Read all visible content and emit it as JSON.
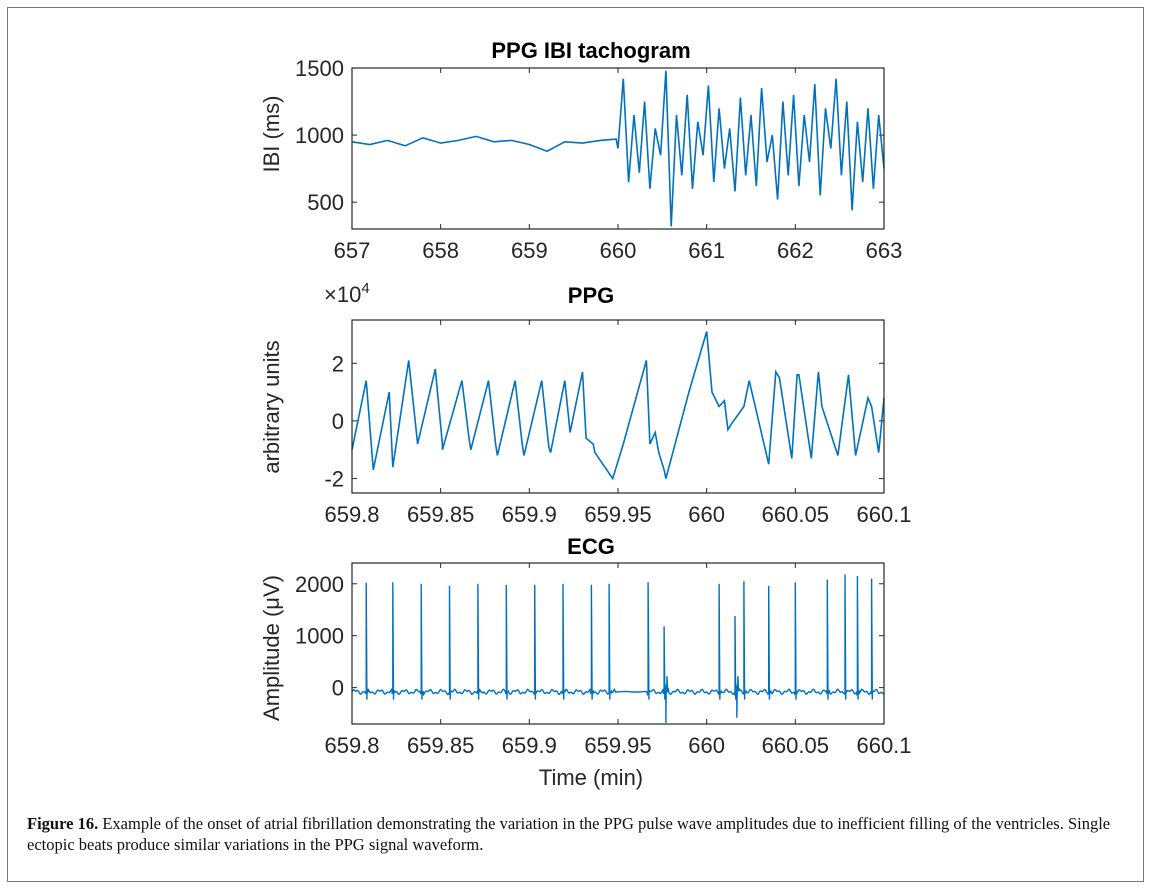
{
  "figure": {
    "caption_label": "Figure 16.",
    "caption_text": " Example of the onset of atrial fibrillation demonstrating the variation in the PPG pulse wave amplitudes due to inefficient filling of the ventricles. Single ectopic beats produce similar variations in the PPG signal waveform."
  },
  "colors": {
    "line": "#0072BD",
    "axis": "#262626"
  },
  "chart_data": [
    {
      "type": "line",
      "title": "PPG IBI tachogram",
      "xlabel": "",
      "ylabel": "IBI (ms)",
      "xlim": [
        657,
        663
      ],
      "ylim": [
        300,
        1500
      ],
      "xticks": [
        657,
        658,
        659,
        660,
        661,
        662,
        663
      ],
      "xtick_labels": [
        "657",
        "658",
        "659",
        "660",
        "661",
        "662",
        "663"
      ],
      "yticks": [
        500,
        1000,
        1500
      ],
      "ytick_labels": [
        "500",
        "1000",
        "1500"
      ],
      "series": [
        {
          "x": [
            657.0,
            657.2,
            657.4,
            657.6,
            657.8,
            658.0,
            658.2,
            658.4,
            658.6,
            658.8,
            659.0,
            659.2,
            659.4,
            659.6,
            659.8,
            659.98,
            660.0,
            660.06,
            660.12,
            660.18,
            660.24,
            660.3,
            660.36,
            660.42,
            660.48,
            660.54,
            660.6,
            660.66,
            660.72,
            660.78,
            660.84,
            660.9,
            660.96,
            661.02,
            661.08,
            661.14,
            661.2,
            661.26,
            661.32,
            661.38,
            661.44,
            661.5,
            661.56,
            661.62,
            661.68,
            661.74,
            661.8,
            661.86,
            661.92,
            661.98,
            662.04,
            662.1,
            662.16,
            662.22,
            662.28,
            662.34,
            662.4,
            662.46,
            662.52,
            662.58,
            662.64,
            662.7,
            662.76,
            662.82,
            662.88,
            662.94,
            663.0
          ],
          "y": [
            950,
            930,
            960,
            920,
            980,
            940,
            960,
            990,
            950,
            960,
            930,
            880,
            950,
            940,
            960,
            970,
            900,
            1420,
            650,
            1150,
            720,
            1250,
            600,
            1050,
            850,
            1480,
            320,
            1150,
            700,
            1300,
            600,
            1100,
            850,
            1370,
            650,
            1200,
            750,
            1050,
            580,
            1280,
            700,
            1150,
            620,
            1350,
            800,
            1000,
            520,
            1250,
            700,
            1300,
            620,
            1150,
            800,
            1380,
            550,
            1200,
            900,
            1420,
            700,
            1250,
            440,
            1100,
            650,
            1200,
            600,
            1150,
            750
          ]
        }
      ]
    },
    {
      "type": "line",
      "title": "PPG",
      "xlabel": "",
      "ylabel": "arbitrary units",
      "y_exponent_label": "×10",
      "y_exponent_power": "4",
      "xlim": [
        659.8,
        660.1
      ],
      "ylim": [
        -2.5,
        3.5
      ],
      "xticks": [
        659.8,
        659.85,
        659.9,
        659.95,
        660.0,
        660.05,
        660.1
      ],
      "xtick_labels": [
        "659.8",
        "659.85",
        "659.9",
        "659.95",
        "660",
        "660.05",
        "660.1"
      ],
      "yticks": [
        -2,
        0,
        2
      ],
      "ytick_labels": [
        "-2",
        "0",
        "2"
      ],
      "series": [
        {
          "x": [
            659.8,
            659.808,
            659.812,
            659.821,
            659.823,
            659.832,
            659.836,
            659.837,
            659.847,
            659.851,
            659.851,
            659.862,
            659.866,
            659.867,
            659.877,
            659.881,
            659.882,
            659.892,
            659.896,
            659.897,
            659.907,
            659.911,
            659.912,
            659.92,
            659.923,
            659.93,
            659.932,
            659.936,
            659.937,
            659.947,
            659.953,
            659.966,
            659.968,
            659.971,
            659.973,
            659.976,
            659.977,
            659.99,
            660.0,
            660.003,
            660.007,
            660.01,
            660.012,
            660.014,
            660.021,
            660.024,
            660.035,
            660.039,
            660.041,
            660.048,
            660.051,
            660.052,
            660.059,
            660.063,
            660.065,
            660.074,
            660.08,
            660.084,
            660.091,
            660.093,
            660.097,
            660.1
          ],
          "y": [
            -1.0,
            1.4,
            -1.7,
            1.0,
            -1.6,
            2.1,
            -0.2,
            -0.8,
            1.8,
            -0.8,
            -1.0,
            1.4,
            -0.6,
            -1.0,
            1.4,
            -0.8,
            -1.2,
            1.4,
            -0.8,
            -1.2,
            1.4,
            -0.9,
            -1.1,
            1.4,
            -0.4,
            1.7,
            -0.6,
            -0.8,
            -1.1,
            -2.0,
            -0.8,
            2.1,
            -0.8,
            -0.4,
            -1.1,
            -1.7,
            -2.0,
            1.0,
            3.1,
            1.0,
            0.5,
            0.7,
            -0.3,
            -0.1,
            0.5,
            1.4,
            -1.5,
            1.7,
            1.5,
            -1.3,
            1.6,
            1.6,
            -1.3,
            1.7,
            0.5,
            -1.2,
            1.6,
            -1.2,
            0.8,
            0.5,
            -1.1,
            0.8
          ]
        }
      ]
    },
    {
      "type": "line",
      "title": "ECG",
      "xlabel": "Time (min)",
      "ylabel": "Amplitude (μV)",
      "xlim": [
        659.8,
        660.1
      ],
      "ylim": [
        -700,
        2400
      ],
      "xticks": [
        659.8,
        659.85,
        659.9,
        659.95,
        660.0,
        660.05,
        660.1
      ],
      "xtick_labels": [
        "659.8",
        "659.85",
        "659.9",
        "659.95",
        "660",
        "660.05",
        "660.1"
      ],
      "yticks": [
        0,
        1000,
        2000
      ],
      "ytick_labels": [
        "0",
        "1000",
        "2000"
      ],
      "r_peaks": [
        {
          "x": 659.808,
          "y": 2020
        },
        {
          "x": 659.823,
          "y": 2030
        },
        {
          "x": 659.839,
          "y": 2000
        },
        {
          "x": 659.855,
          "y": 1960
        },
        {
          "x": 659.871,
          "y": 2000
        },
        {
          "x": 659.887,
          "y": 1980
        },
        {
          "x": 659.903,
          "y": 1980
        },
        {
          "x": 659.919,
          "y": 2000
        },
        {
          "x": 659.935,
          "y": 1980
        },
        {
          "x": 659.945,
          "y": 2000
        },
        {
          "x": 659.967,
          "y": 2030
        },
        {
          "x": 659.976,
          "y": 1180
        },
        {
          "x": 660.007,
          "y": 2000
        },
        {
          "x": 660.016,
          "y": 1380
        },
        {
          "x": 660.021,
          "y": 2050
        },
        {
          "x": 660.035,
          "y": 1960
        },
        {
          "x": 660.05,
          "y": 2030
        },
        {
          "x": 660.068,
          "y": 2080
        },
        {
          "x": 660.078,
          "y": 2180
        },
        {
          "x": 660.085,
          "y": 2150
        },
        {
          "x": 660.093,
          "y": 2100
        }
      ],
      "baseline": -80,
      "flat_segment": [
        659.948,
        659.966
      ],
      "dips": [
        {
          "x": 659.977,
          "y": -680
        },
        {
          "x": 660.017,
          "y": -580
        }
      ]
    }
  ]
}
